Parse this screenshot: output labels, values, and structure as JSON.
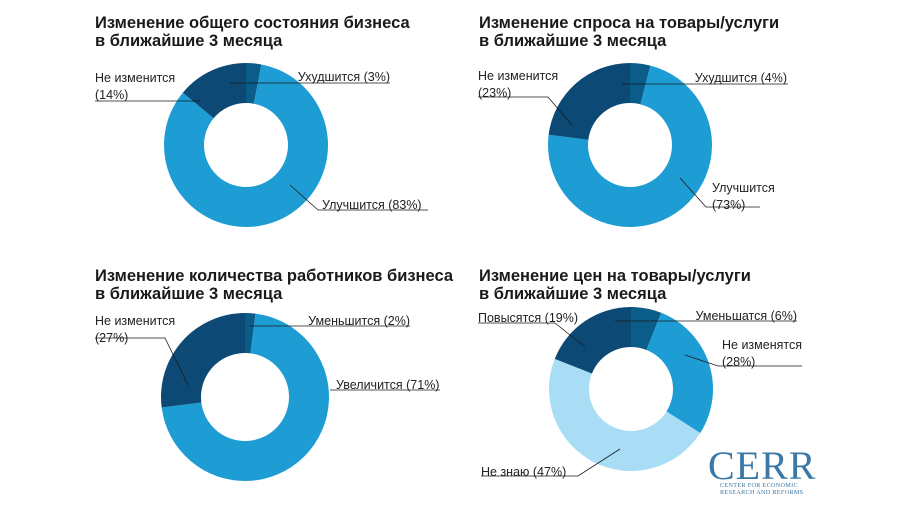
{
  "colors": {
    "dark": "#0c4a75",
    "medium": "#1e9dd4",
    "light": "#a9dcf5",
    "darkest": "#0a3a5e"
  },
  "chart_data": [
    {
      "type": "pie",
      "title": "Изменение общего состояния бизнеса в ближайшие 3 месяца",
      "title_lines": [
        "Изменение общего состояния бизнеса",
        "в ближайшие 3 месяца"
      ],
      "slices": [
        {
          "name": "Ухудшится",
          "value": 3,
          "label": "Ухудшится (3%)",
          "color": "#0a5c89"
        },
        {
          "name": "Улучшится",
          "value": 83,
          "label": "Улучшится (83%)",
          "color": "#1e9dd4"
        },
        {
          "name": "Не изменится",
          "value": 14,
          "label_lines": [
            "Не изменится",
            "(14%)"
          ],
          "color": "#0c4a75"
        }
      ]
    },
    {
      "type": "pie",
      "title": "Изменение спроса на товары/услуги в ближайшие 3 месяца",
      "title_lines": [
        "Изменение спроса на товары/услуги",
        "в ближайшие 3 месяца"
      ],
      "slices": [
        {
          "name": "Ухудшится",
          "value": 4,
          "label": "Ухудшится (4%)",
          "color": "#0a5c89"
        },
        {
          "name": "Улучшится",
          "value": 73,
          "label_lines": [
            "Улучшится",
            "(73%)"
          ],
          "color": "#1e9dd4"
        },
        {
          "name": "Не изменится",
          "value": 23,
          "label_lines": [
            "Не изменится",
            "(23%)"
          ],
          "color": "#0c4a75"
        }
      ]
    },
    {
      "type": "pie",
      "title": "Изменение количества работников бизнеса в ближайшие 3 месяца",
      "title_lines": [
        "Изменение количества работников бизнеса",
        "в ближайшие 3 месяца"
      ],
      "slices": [
        {
          "name": "Уменьшится",
          "value": 2,
          "label": "Уменьшится (2%)",
          "color": "#0a5c89"
        },
        {
          "name": "Увеличится",
          "value": 71,
          "label": "Увеличится (71%)",
          "color": "#1e9dd4"
        },
        {
          "name": "Не изменится",
          "value": 27,
          "label_lines": [
            "Не изменится",
            "(27%)"
          ],
          "color": "#0c4a75"
        }
      ]
    },
    {
      "type": "pie",
      "title": "Изменение цен на товары/услуги в ближайшие 3 месяца",
      "title_lines": [
        "Изменение цен на товары/услуги",
        "в ближайшие 3 месяца"
      ],
      "slices": [
        {
          "name": "Уменьшатся",
          "value": 6,
          "label": "Уменьшатся (6%)",
          "color": "#0a5c89"
        },
        {
          "name": "Не изменятся",
          "value": 28,
          "label_lines": [
            "Не изменятся",
            "(28%)"
          ],
          "color": "#1e9dd4"
        },
        {
          "name": "Не знаю",
          "value": 47,
          "label": "Не знаю (47%)",
          "color": "#a9dcf5"
        },
        {
          "name": "Повысятся",
          "value": 19,
          "label": "Повысятся (19%)",
          "color": "#0c4a75"
        }
      ]
    }
  ],
  "logo": {
    "word": "CERR",
    "sub_lines": [
      "CENTER FOR ECONOMIC",
      "RESEARCH AND REFORMS"
    ]
  }
}
